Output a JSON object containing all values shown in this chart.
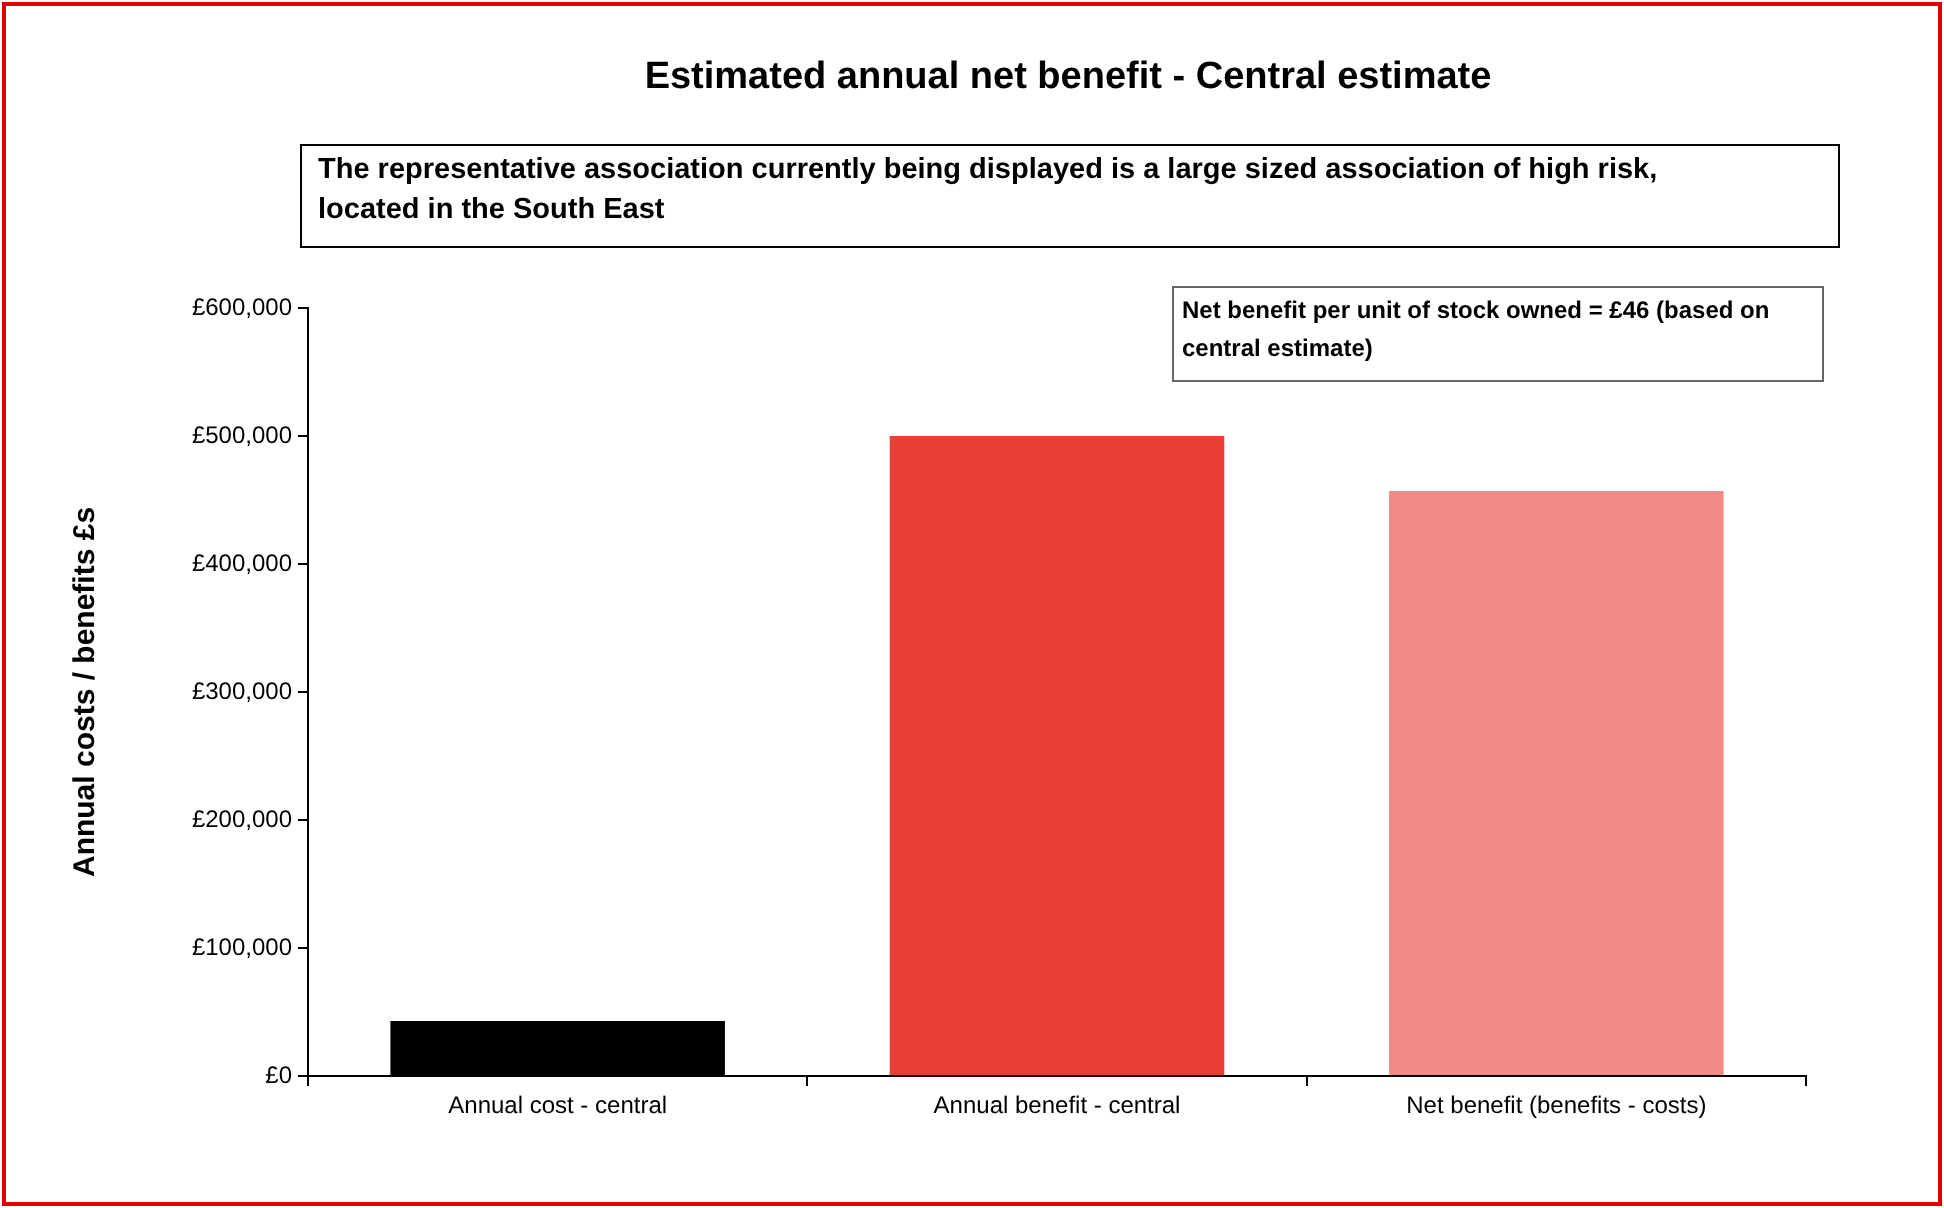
{
  "chart_data": {
    "type": "bar",
    "title": "Estimated annual net benefit - Central estimate",
    "subtitle": "The representative association currently being displayed is a large sized association of  high risk, located in the South East",
    "annotations": [
      "Net benefit per unit of stock owned = £46 (based on central estimate)"
    ],
    "ylabel": "Annual costs / benefits £s",
    "categories": [
      "Annual cost - central",
      "Annual benefit - central",
      "Net benefit (benefits - costs)"
    ],
    "values": [
      43000,
      500000,
      457000
    ],
    "colors": [
      "#000000",
      "#e83e35",
      "#f08a85"
    ],
    "ylim": [
      0,
      600000
    ],
    "yticks": [
      {
        "value": 0,
        "label": "£0"
      },
      {
        "value": 100000,
        "label": "£100,000"
      },
      {
        "value": 200000,
        "label": "£200,000"
      },
      {
        "value": 300000,
        "label": "£300,000"
      },
      {
        "value": 400000,
        "label": "£400,000"
      },
      {
        "value": 500000,
        "label": "£500,000"
      },
      {
        "value": 600000,
        "label": "£600,000"
      }
    ]
  }
}
